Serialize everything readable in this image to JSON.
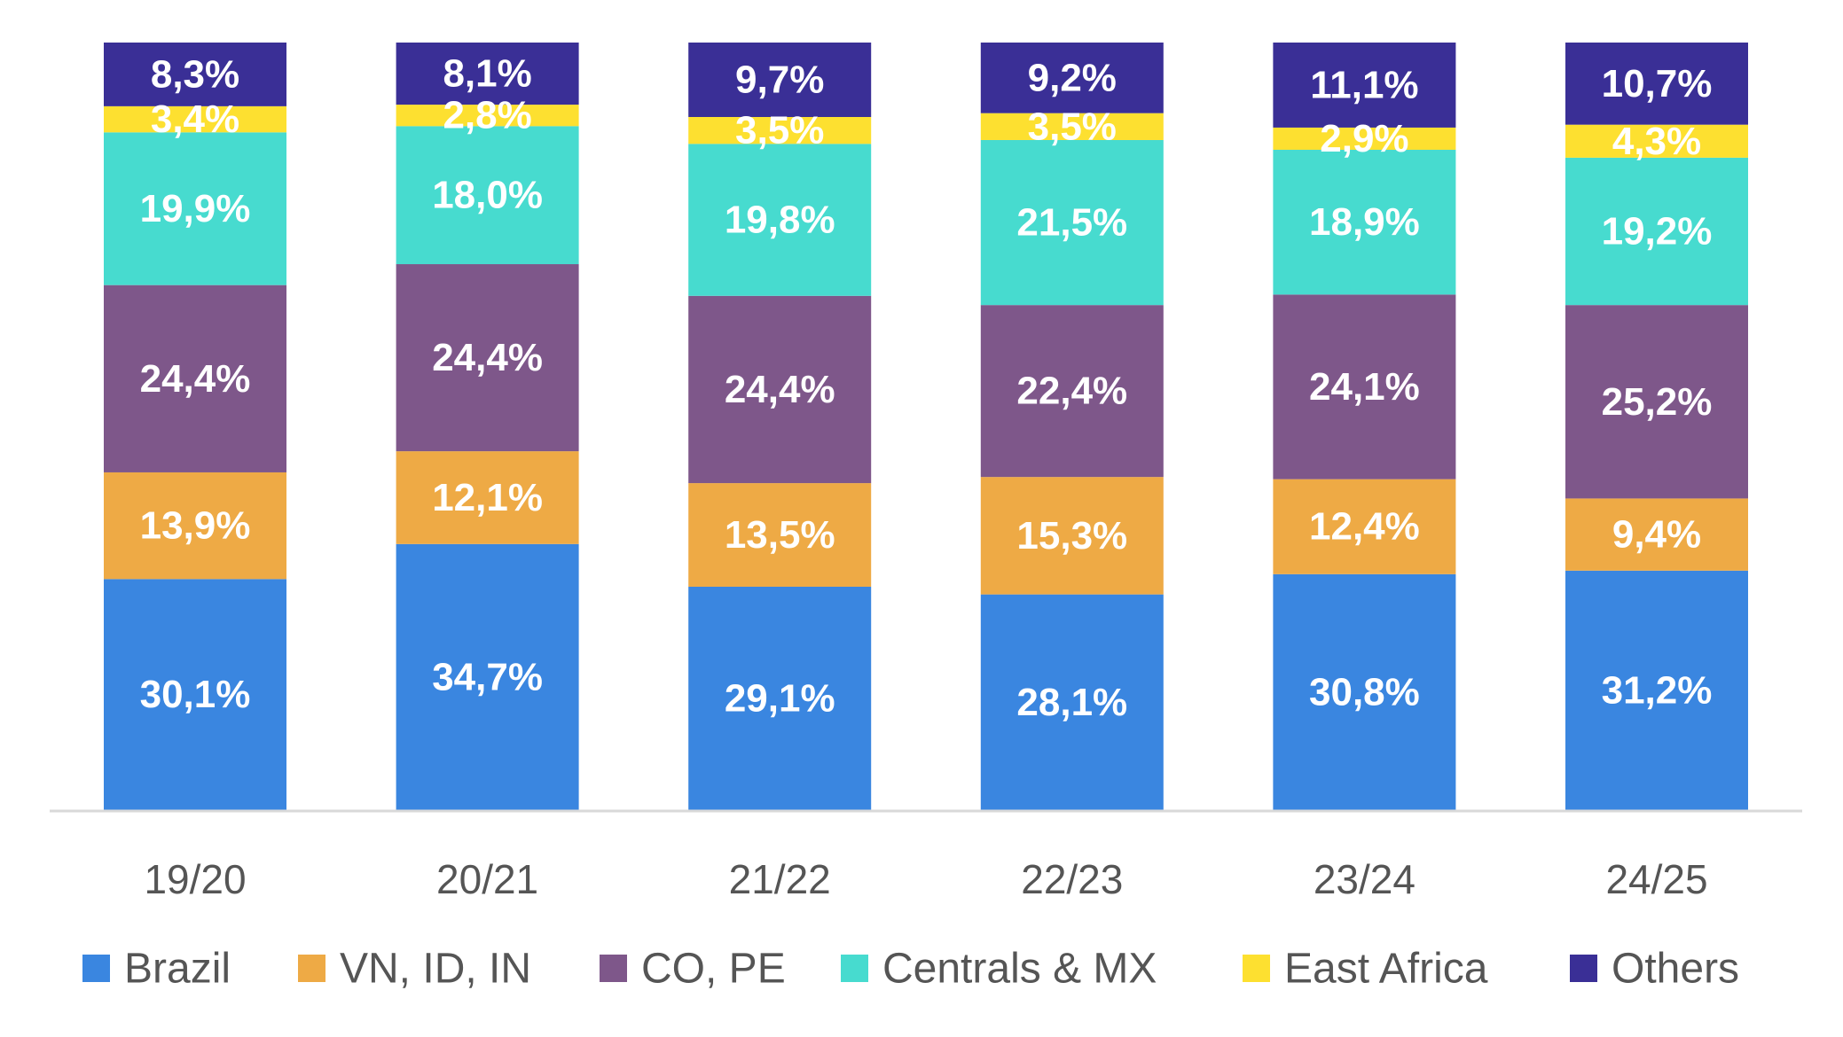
{
  "chart_data": {
    "type": "bar",
    "stacked": true,
    "title": "",
    "xlabel": "",
    "ylabel": "",
    "ylim": [
      0,
      100
    ],
    "grid": false,
    "legend_position": "bottom",
    "categories": [
      "19/20",
      "20/21",
      "21/22",
      "22/23",
      "23/24",
      "24/25"
    ],
    "series": [
      {
        "name": "Brazil",
        "color": "#3a86e0",
        "values": [
          30.1,
          34.7,
          29.1,
          28.1,
          30.8,
          31.2
        ],
        "labels": [
          "30,1%",
          "34,7%",
          "29,1%",
          "28,1%",
          "30,8%",
          "31,2%"
        ]
      },
      {
        "name": "VN, ID, IN",
        "color": "#eeaa45",
        "values": [
          13.9,
          12.1,
          13.5,
          15.3,
          12.4,
          9.4
        ],
        "labels": [
          "13,9%",
          "12,1%",
          "13,5%",
          "15,3%",
          "12,4%",
          "9,4%"
        ]
      },
      {
        "name": "CO, PE",
        "color": "#7e578a",
        "values": [
          24.4,
          24.4,
          24.4,
          22.4,
          24.1,
          25.2
        ],
        "labels": [
          "24,4%",
          "24,4%",
          "24,4%",
          "22,4%",
          "24,1%",
          "25,2%"
        ]
      },
      {
        "name": "Centrals & MX",
        "color": "#47dbcf",
        "values": [
          19.9,
          18.0,
          19.8,
          21.5,
          18.9,
          19.2
        ],
        "labels": [
          "19,9%",
          "18,0%",
          "19,8%",
          "21,5%",
          "18,9%",
          "19,2%"
        ]
      },
      {
        "name": "East Africa",
        "color": "#fde030",
        "values": [
          3.4,
          2.8,
          3.5,
          3.5,
          2.9,
          4.3
        ],
        "labels": [
          "3,4%",
          "2,8%",
          "3,5%",
          "3,5%",
          "2,9%",
          "4,3%"
        ]
      },
      {
        "name": "Others",
        "color": "#3a2f96",
        "values": [
          8.3,
          8.1,
          9.7,
          9.2,
          11.1,
          10.7
        ],
        "labels": [
          "8,3%",
          "8,1%",
          "9,7%",
          "9,2%",
          "11,1%",
          "10,7%"
        ]
      }
    ]
  }
}
